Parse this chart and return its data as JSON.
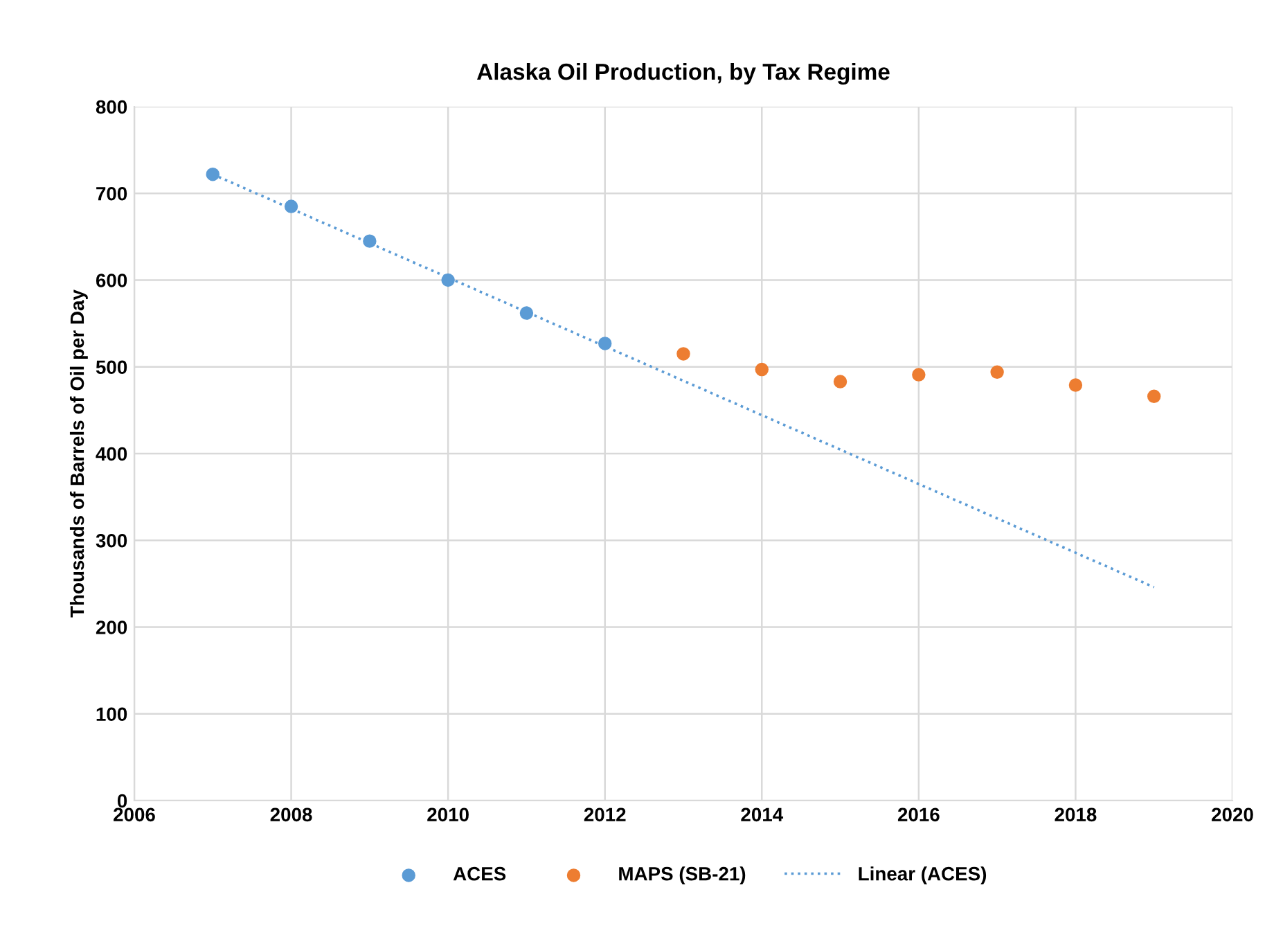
{
  "chart_data": {
    "type": "scatter",
    "title": "Alaska Oil Production, by Tax Regime",
    "ylabel": "Thousands of Barrels of Oil per Day",
    "xlim": [
      2006,
      2020
    ],
    "xticks": [
      2006,
      2008,
      2010,
      2012,
      2014,
      2016,
      2018,
      2020
    ],
    "ylim": [
      0,
      800
    ],
    "yticks": [
      0,
      100,
      200,
      300,
      400,
      500,
      600,
      700,
      800
    ],
    "grid": true,
    "legend": "bottom",
    "marker": "circle",
    "series": [
      {
        "name": "ACES",
        "color": "#5b9bd5",
        "x": [
          2007,
          2008,
          2009,
          2010,
          2011,
          2012
        ],
        "values": [
          722,
          685,
          645,
          600,
          562,
          527
        ]
      },
      {
        "name": "MAPS (SB-21)",
        "color": "#ed7d31",
        "x": [
          2013,
          2014,
          2015,
          2016,
          2017,
          2018,
          2019
        ],
        "values": [
          515,
          497,
          483,
          491,
          494,
          479,
          466
        ]
      },
      {
        "name": "Linear (ACES)",
        "type": "line",
        "marker": "none",
        "line_style": "dotted",
        "color": "#5b9bd5",
        "x": [
          2007,
          2019
        ],
        "values": [
          722,
          246
        ]
      }
    ]
  }
}
